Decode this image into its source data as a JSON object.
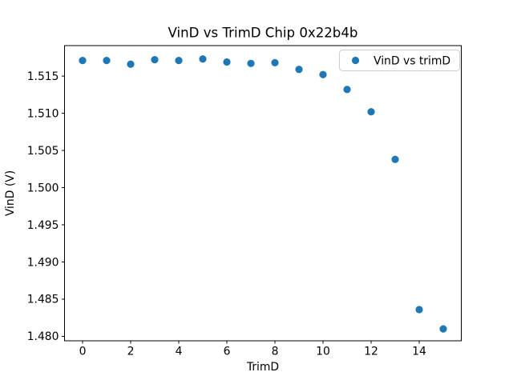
{
  "figure": {
    "background": "#ffffff",
    "text_color": "#000000",
    "spine_color": "#000000"
  },
  "chart_data": {
    "type": "scatter",
    "title": "VinD vs TrimD Chip 0x22b4b",
    "xlabel": "TrimD",
    "ylabel": "VinD (V)",
    "grid": false,
    "legend": {
      "position": "upper right",
      "entries": [
        {
          "label": "VinD vs trimD",
          "marker": "circle",
          "marker_color": "#1f77b4"
        }
      ]
    },
    "xlim": [
      -0.75,
      15.75
    ],
    "ylim": [
      1.4794,
      1.5191
    ],
    "xticks": [
      0,
      2,
      4,
      6,
      8,
      10,
      12,
      14
    ],
    "xtick_labels": [
      "0",
      "2",
      "4",
      "6",
      "8",
      "10",
      "12",
      "14"
    ],
    "yticks": [
      1.48,
      1.485,
      1.49,
      1.495,
      1.5,
      1.505,
      1.51,
      1.515
    ],
    "ytick_labels": [
      "1.480",
      "1.485",
      "1.490",
      "1.495",
      "1.500",
      "1.505",
      "1.510",
      "1.515"
    ],
    "series": [
      {
        "name": "VinD vs trimD",
        "marker": "circle",
        "color": "#1f77b4",
        "x": [
          0,
          1,
          2,
          3,
          4,
          5,
          6,
          7,
          8,
          9,
          10,
          11,
          12,
          13,
          14,
          15
        ],
        "y": [
          1.5171,
          1.5171,
          1.5166,
          1.5172,
          1.5171,
          1.5173,
          1.5169,
          1.5167,
          1.5168,
          1.5159,
          1.5152,
          1.5132,
          1.5102,
          1.5038,
          1.4836,
          1.481
        ]
      }
    ]
  }
}
